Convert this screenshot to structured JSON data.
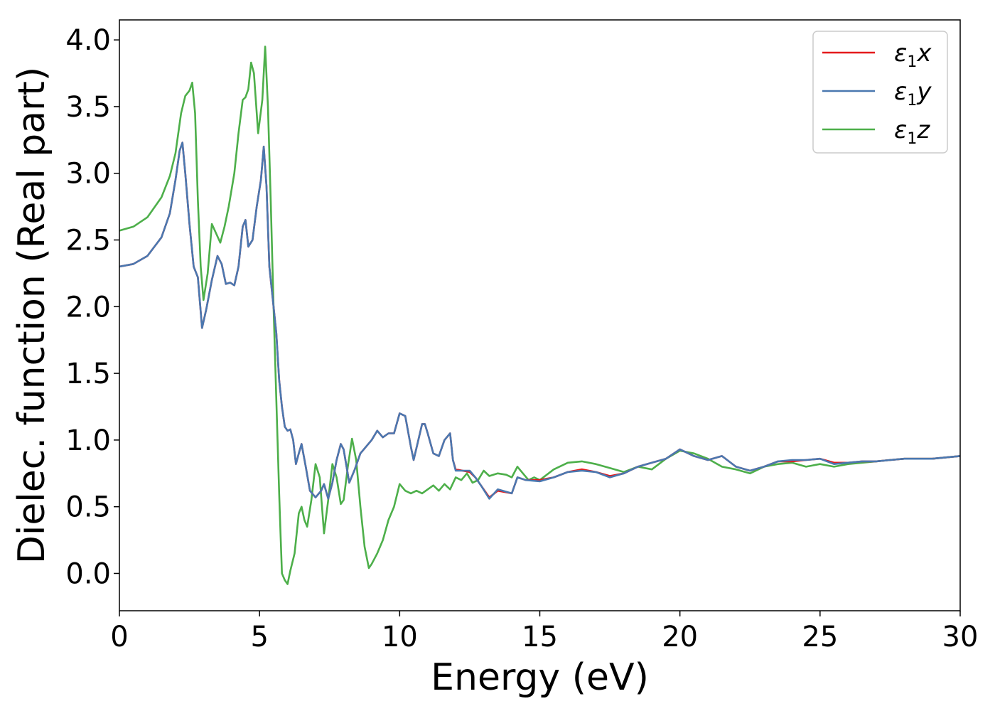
{
  "chart_data": {
    "type": "line",
    "title": "",
    "xlabel": "Energy (eV)",
    "ylabel": "Dielec. function (Real part)",
    "xlim": [
      0,
      30
    ],
    "ylim": [
      -0.28,
      4.15
    ],
    "xticks": [
      0,
      5,
      10,
      15,
      20,
      25,
      30
    ],
    "yticks": [
      0.0,
      0.5,
      1.0,
      1.5,
      2.0,
      2.5,
      3.0,
      3.5,
      4.0
    ],
    "xtick_labels": [
      "0",
      "5",
      "10",
      "15",
      "20",
      "25",
      "30"
    ],
    "ytick_labels": [
      "0.0",
      "0.5",
      "1.0",
      "1.5",
      "2.0",
      "2.5",
      "3.0",
      "3.5",
      "4.0"
    ],
    "grid": false,
    "legend_position": "top-right",
    "series": [
      {
        "name": "ε₁x",
        "legend_main": "ε",
        "legend_sub": "1",
        "legend_tail": "x",
        "color": "#e41a1c",
        "x": [
          0,
          0.5,
          1.0,
          1.5,
          1.8,
          2.0,
          2.15,
          2.25,
          2.35,
          2.5,
          2.65,
          2.8,
          2.95,
          3.1,
          3.3,
          3.5,
          3.65,
          3.8,
          3.95,
          4.1,
          4.25,
          4.4,
          4.5,
          4.6,
          4.75,
          4.9,
          5.05,
          5.15,
          5.25,
          5.35,
          5.5,
          5.6,
          5.7,
          5.8,
          5.9,
          6.0,
          6.1,
          6.2,
          6.3,
          6.4,
          6.5,
          6.65,
          6.8,
          7.0,
          7.2,
          7.3,
          7.45,
          7.6,
          7.75,
          7.9,
          8.0,
          8.2,
          8.4,
          8.6,
          8.8,
          9.0,
          9.2,
          9.4,
          9.6,
          9.8,
          10.0,
          10.2,
          10.4,
          10.5,
          10.8,
          10.9,
          11.0,
          11.2,
          11.4,
          11.6,
          11.8,
          11.9,
          12.0,
          12.5,
          12.7,
          12.9,
          13.2,
          13.5,
          14.0,
          14.2,
          14.5,
          15.0,
          15.5,
          16.0,
          16.5,
          17.0,
          17.5,
          18.0,
          18.5,
          19.0,
          19.5,
          20.0,
          20.5,
          21.0,
          21.5,
          22.0,
          22.5,
          23.0,
          23.5,
          24.0,
          24.5,
          25.0,
          25.5,
          26.0,
          26.5,
          27.0,
          27.5,
          28.0,
          28.5,
          29.0,
          29.5,
          30.0
        ],
        "y": [
          2.3,
          2.32,
          2.38,
          2.52,
          2.7,
          2.95,
          3.17,
          3.23,
          3.0,
          2.62,
          2.3,
          2.22,
          1.84,
          1.98,
          2.2,
          2.38,
          2.32,
          2.17,
          2.18,
          2.16,
          2.3,
          2.6,
          2.65,
          2.45,
          2.5,
          2.75,
          2.95,
          3.2,
          2.9,
          2.3,
          2.0,
          1.8,
          1.45,
          1.25,
          1.1,
          1.07,
          1.08,
          1.0,
          0.82,
          0.9,
          0.97,
          0.8,
          0.62,
          0.57,
          0.62,
          0.67,
          0.56,
          0.68,
          0.85,
          0.97,
          0.93,
          0.68,
          0.78,
          0.9,
          0.95,
          1.0,
          1.07,
          1.02,
          1.05,
          1.05,
          1.2,
          1.18,
          0.95,
          0.85,
          1.12,
          1.12,
          1.05,
          0.9,
          0.88,
          1.0,
          1.05,
          0.85,
          0.78,
          0.76,
          0.72,
          0.66,
          0.57,
          0.62,
          0.6,
          0.72,
          0.7,
          0.7,
          0.72,
          0.76,
          0.78,
          0.76,
          0.73,
          0.75,
          0.8,
          0.83,
          0.86,
          0.93,
          0.88,
          0.85,
          0.88,
          0.8,
          0.77,
          0.8,
          0.84,
          0.84,
          0.85,
          0.86,
          0.83,
          0.83,
          0.84,
          0.84,
          0.85,
          0.86,
          0.86,
          0.86,
          0.87,
          0.88
        ]
      },
      {
        "name": "ε₁y",
        "legend_main": "ε",
        "legend_sub": "1",
        "legend_tail": "y",
        "color": "#4a78b0",
        "x": [
          0,
          0.5,
          1.0,
          1.5,
          1.8,
          2.0,
          2.15,
          2.25,
          2.35,
          2.5,
          2.65,
          2.8,
          2.95,
          3.1,
          3.3,
          3.5,
          3.65,
          3.8,
          3.95,
          4.1,
          4.25,
          4.4,
          4.5,
          4.6,
          4.75,
          4.9,
          5.05,
          5.15,
          5.25,
          5.35,
          5.5,
          5.6,
          5.7,
          5.8,
          5.9,
          6.0,
          6.1,
          6.2,
          6.3,
          6.4,
          6.5,
          6.65,
          6.8,
          7.0,
          7.2,
          7.3,
          7.45,
          7.6,
          7.75,
          7.9,
          8.0,
          8.2,
          8.4,
          8.6,
          8.8,
          9.0,
          9.2,
          9.4,
          9.6,
          9.8,
          10.0,
          10.2,
          10.4,
          10.5,
          10.8,
          10.9,
          11.0,
          11.2,
          11.4,
          11.6,
          11.8,
          11.9,
          12.0,
          12.5,
          12.7,
          12.9,
          13.2,
          13.5,
          14.0,
          14.2,
          14.5,
          15.0,
          15.5,
          16.0,
          16.5,
          17.0,
          17.5,
          18.0,
          18.5,
          19.0,
          19.5,
          20.0,
          20.5,
          21.0,
          21.5,
          22.0,
          22.5,
          23.0,
          23.5,
          24.0,
          24.5,
          25.0,
          25.5,
          26.0,
          26.5,
          27.0,
          27.5,
          28.0,
          28.5,
          29.0,
          29.5,
          30.0
        ],
        "y": [
          2.3,
          2.32,
          2.38,
          2.52,
          2.7,
          2.95,
          3.17,
          3.23,
          3.0,
          2.62,
          2.3,
          2.22,
          1.84,
          1.98,
          2.2,
          2.38,
          2.32,
          2.17,
          2.18,
          2.16,
          2.3,
          2.6,
          2.65,
          2.45,
          2.5,
          2.75,
          2.95,
          3.2,
          2.9,
          2.3,
          2.0,
          1.8,
          1.45,
          1.25,
          1.1,
          1.07,
          1.08,
          1.0,
          0.82,
          0.9,
          0.97,
          0.8,
          0.62,
          0.57,
          0.62,
          0.67,
          0.56,
          0.68,
          0.85,
          0.97,
          0.93,
          0.68,
          0.78,
          0.9,
          0.95,
          1.0,
          1.07,
          1.02,
          1.05,
          1.05,
          1.2,
          1.18,
          0.95,
          0.85,
          1.12,
          1.12,
          1.05,
          0.9,
          0.88,
          1.0,
          1.05,
          0.85,
          0.77,
          0.77,
          0.72,
          0.66,
          0.56,
          0.63,
          0.6,
          0.72,
          0.7,
          0.69,
          0.72,
          0.76,
          0.77,
          0.76,
          0.72,
          0.75,
          0.8,
          0.83,
          0.86,
          0.93,
          0.88,
          0.85,
          0.88,
          0.8,
          0.77,
          0.8,
          0.84,
          0.85,
          0.85,
          0.86,
          0.82,
          0.83,
          0.84,
          0.84,
          0.85,
          0.86,
          0.86,
          0.86,
          0.87,
          0.88
        ]
      },
      {
        "name": "ε₁z",
        "legend_main": "ε",
        "legend_sub": "1",
        "legend_tail": "z",
        "color": "#4daf4a",
        "x": [
          0,
          0.5,
          1.0,
          1.5,
          1.8,
          2.0,
          2.2,
          2.35,
          2.5,
          2.6,
          2.7,
          2.8,
          2.9,
          3.0,
          3.15,
          3.3,
          3.45,
          3.6,
          3.75,
          3.9,
          4.1,
          4.25,
          4.4,
          4.5,
          4.6,
          4.7,
          4.8,
          4.95,
          5.1,
          5.2,
          5.3,
          5.4,
          5.5,
          5.6,
          5.7,
          5.75,
          5.8,
          5.9,
          6.0,
          6.1,
          6.25,
          6.4,
          6.5,
          6.6,
          6.7,
          6.85,
          7.0,
          7.15,
          7.3,
          7.45,
          7.6,
          7.75,
          7.9,
          8.0,
          8.15,
          8.3,
          8.45,
          8.6,
          8.75,
          8.9,
          9.0,
          9.2,
          9.4,
          9.6,
          9.8,
          10.0,
          10.2,
          10.4,
          10.6,
          10.8,
          11.0,
          11.2,
          11.4,
          11.6,
          11.8,
          12.0,
          12.2,
          12.4,
          12.6,
          12.8,
          13.0,
          13.2,
          13.5,
          13.8,
          14.0,
          14.2,
          14.4,
          14.6,
          14.8,
          15.0,
          15.5,
          16.0,
          16.5,
          17.0,
          17.5,
          18.0,
          18.5,
          19.0,
          19.5,
          20.0,
          20.5,
          21.0,
          21.5,
          22.0,
          22.5,
          23.0,
          23.5,
          24.0,
          24.5,
          25.0,
          25.5,
          26.0,
          26.5,
          27.0,
          27.5,
          28.0,
          28.5,
          29.0,
          29.5,
          30.0
        ],
        "y": [
          2.57,
          2.6,
          2.67,
          2.82,
          2.98,
          3.15,
          3.45,
          3.58,
          3.62,
          3.68,
          3.45,
          2.8,
          2.3,
          2.05,
          2.25,
          2.62,
          2.55,
          2.48,
          2.6,
          2.75,
          3.0,
          3.3,
          3.55,
          3.57,
          3.63,
          3.83,
          3.75,
          3.3,
          3.55,
          3.95,
          3.5,
          2.8,
          2.0,
          1.3,
          0.6,
          0.3,
          0.0,
          -0.05,
          -0.08,
          0.02,
          0.15,
          0.45,
          0.5,
          0.4,
          0.35,
          0.55,
          0.82,
          0.72,
          0.3,
          0.55,
          0.82,
          0.72,
          0.52,
          0.55,
          0.8,
          1.01,
          0.85,
          0.5,
          0.2,
          0.04,
          0.07,
          0.15,
          0.25,
          0.4,
          0.5,
          0.67,
          0.62,
          0.6,
          0.62,
          0.6,
          0.63,
          0.66,
          0.62,
          0.67,
          0.63,
          0.72,
          0.7,
          0.75,
          0.68,
          0.7,
          0.77,
          0.73,
          0.75,
          0.74,
          0.72,
          0.8,
          0.75,
          0.7,
          0.72,
          0.7,
          0.78,
          0.83,
          0.84,
          0.82,
          0.79,
          0.76,
          0.8,
          0.78,
          0.86,
          0.92,
          0.9,
          0.86,
          0.8,
          0.78,
          0.75,
          0.8,
          0.82,
          0.83,
          0.8,
          0.82,
          0.8,
          0.82,
          0.83,
          0.84,
          0.85,
          0.86,
          0.86,
          0.86,
          0.87,
          0.88
        ]
      }
    ]
  }
}
